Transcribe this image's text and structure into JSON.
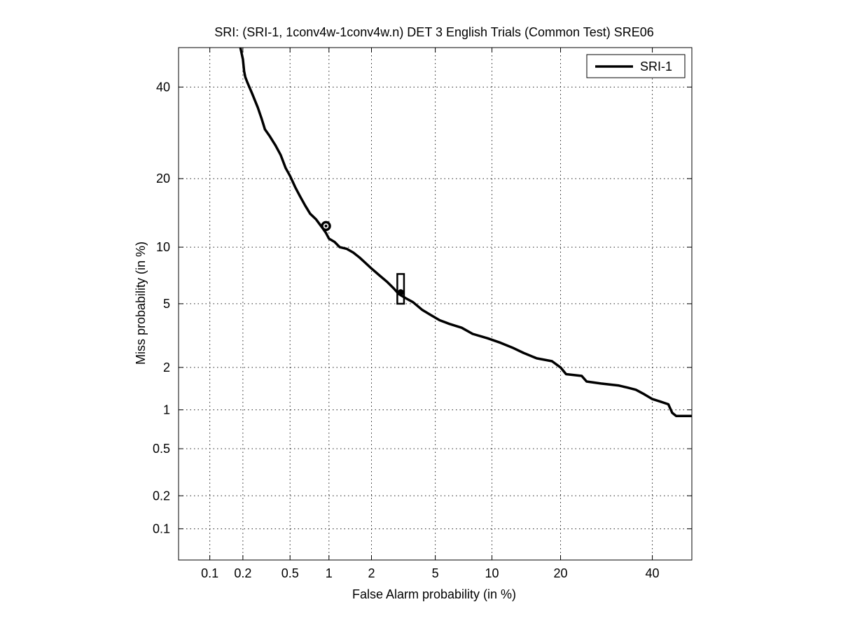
{
  "chart_data": {
    "type": "line",
    "title": "SRI: (SRI-1, 1conv4w-1conv4w.n) DET 3 English Trials (Common Test) SRE06",
    "xlabel": "False Alarm probability (in %)",
    "ylabel": "Miss probability (in %)",
    "xscale": "normal-deviate (probit)",
    "yscale": "normal-deviate (probit)",
    "xlim": [
      0.05,
      50
    ],
    "ylim": [
      0.05,
      50
    ],
    "xticks": [
      0.1,
      0.2,
      0.5,
      1,
      2,
      5,
      10,
      20,
      40
    ],
    "xtick_labels": [
      "0.1",
      "0.2",
      "0.5",
      "1",
      "2",
      "5",
      "10",
      "20",
      "40"
    ],
    "yticks": [
      0.1,
      0.2,
      0.5,
      1,
      2,
      5,
      10,
      20,
      40
    ],
    "ytick_labels": [
      "0.1",
      "0.2",
      "0.5",
      "1",
      "2",
      "5",
      "10",
      "20",
      "40"
    ],
    "grid": true,
    "grid_style": "dotted",
    "legend": {
      "position": "top-right",
      "entries": [
        "SRI-1"
      ]
    },
    "series": [
      {
        "name": "SRI-1",
        "color": "#000000",
        "x": [
          0.19,
          0.2,
          0.205,
          0.21,
          0.22,
          0.24,
          0.27,
          0.29,
          0.31,
          0.34,
          0.38,
          0.42,
          0.46,
          0.5,
          0.55,
          0.6,
          0.66,
          0.72,
          0.8,
          0.88,
          0.95,
          1.0,
          1.1,
          1.2,
          1.35,
          1.5,
          1.65,
          1.8,
          2.0,
          2.25,
          2.55,
          2.8,
          3.0,
          3.3,
          3.7,
          4.2,
          4.7,
          5.3,
          6.0,
          7.0,
          8.0,
          9.5,
          11.0,
          12.5,
          14.0,
          16.0,
          18.5,
          20.0,
          21.0,
          24.0,
          25.0,
          28.0,
          32.0,
          34.0,
          36.0,
          38.0,
          40.0,
          42.0,
          44.0,
          45.0,
          46.0,
          50.0
        ],
        "y": [
          50.0,
          47.0,
          44.0,
          42.5,
          41.0,
          38.5,
          35.0,
          32.5,
          30.0,
          28.5,
          26.5,
          24.5,
          22.0,
          20.5,
          18.5,
          17.0,
          15.5,
          14.3,
          13.5,
          12.5,
          11.7,
          11.0,
          10.6,
          10.0,
          9.8,
          9.4,
          8.9,
          8.4,
          7.8,
          7.2,
          6.6,
          6.1,
          5.7,
          5.4,
          5.1,
          4.6,
          4.3,
          4.0,
          3.8,
          3.6,
          3.3,
          3.1,
          2.9,
          2.7,
          2.5,
          2.3,
          2.2,
          2.0,
          1.8,
          1.75,
          1.6,
          1.55,
          1.5,
          1.45,
          1.4,
          1.3,
          1.2,
          1.15,
          1.1,
          0.95,
          0.9,
          0.9
        ]
      }
    ],
    "markers": [
      {
        "shape": "circle",
        "x": 0.95,
        "y": 12.6,
        "label": ""
      },
      {
        "shape": "box",
        "x": 3.1,
        "y": 5.8,
        "x_range": [
          2.95,
          3.25
        ],
        "y_range": [
          5.0,
          7.3
        ],
        "label": ""
      }
    ]
  }
}
